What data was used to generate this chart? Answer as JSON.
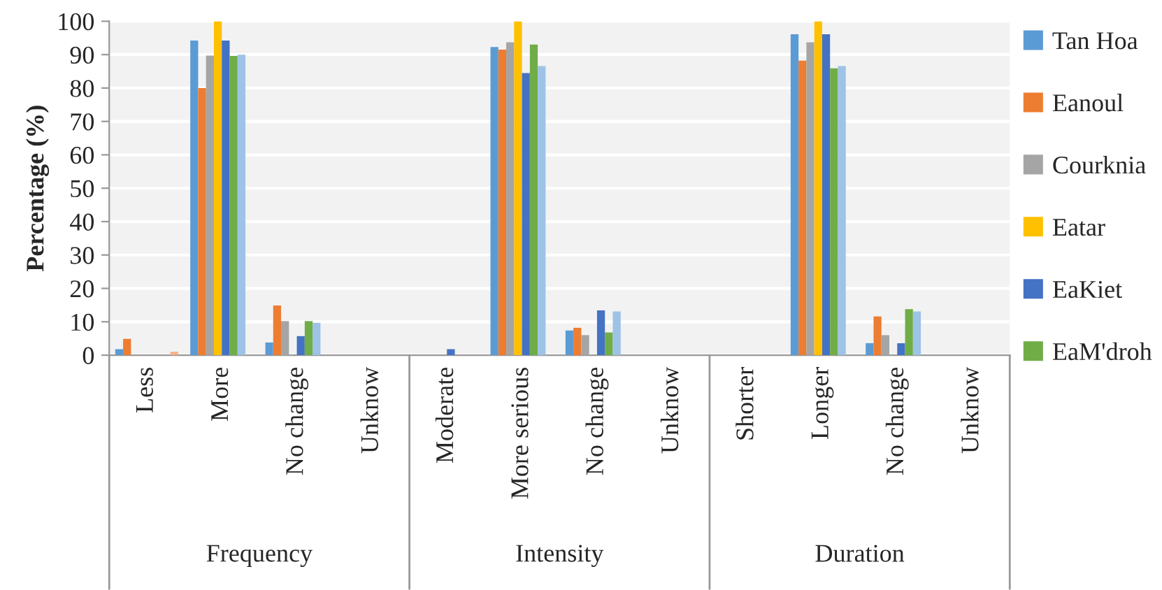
{
  "chart_data": {
    "type": "bar",
    "ylabel": "Percentage (%)",
    "categories": [
      "Less",
      "More",
      "No change",
      "Unknow",
      "Moderate",
      "More serious",
      "No change",
      "Unknow",
      "Shorter",
      "Longer",
      "No change",
      "Unknow"
    ],
    "annotations": [
      "Frequency",
      "Intensity",
      "Duration"
    ],
    "series": [
      {
        "name": "Tan Hoa",
        "color": "#5b9bd5",
        "values": [
          1.8,
          94.2,
          3.8,
          0,
          0,
          92.3,
          7.4,
          0,
          0,
          96.1,
          3.6,
          0
        ]
      },
      {
        "name": "Eanoul",
        "color": "#ed7d31",
        "values": [
          4.9,
          80,
          14.9,
          0,
          0,
          91.5,
          8.2,
          0,
          0,
          88.2,
          11.6,
          0
        ]
      },
      {
        "name": "Courknia",
        "color": "#a5a5a5",
        "values": [
          0,
          89.7,
          10.2,
          0,
          0,
          93.7,
          6,
          0,
          0,
          93.7,
          6,
          0
        ]
      },
      {
        "name": "Eatar",
        "color": "#ffc000",
        "values": [
          0,
          100,
          0,
          0,
          0,
          100,
          0,
          0,
          0,
          100,
          0,
          0
        ]
      },
      {
        "name": "EaKiet",
        "color": "#4472c4",
        "values": [
          0,
          94.2,
          5.7,
          0,
          1.8,
          84.5,
          13.4,
          0,
          0,
          96.1,
          3.6,
          0
        ]
      },
      {
        "name": "EaM'droh",
        "color": "#70ad47",
        "values": [
          0,
          89.6,
          10.2,
          0,
          0,
          93,
          6.8,
          0,
          0,
          85.9,
          13.8,
          0
        ]
      },
      {
        "color": "#9dc3e6",
        "values": [
          0,
          90,
          9.7,
          0,
          0,
          86.6,
          13.1,
          0,
          0,
          86.6,
          13.1,
          0
        ]
      },
      {
        "color": "#f4b183",
        "values": [
          1,
          0,
          0,
          0,
          0,
          0,
          0,
          0,
          0,
          0,
          0,
          0
        ]
      }
    ],
    "ylim": [
      0,
      100
    ],
    "yticks": [
      0,
      10,
      20,
      30,
      40,
      50,
      60,
      70,
      80,
      90,
      100
    ],
    "grid": "y",
    "legend": "right"
  }
}
